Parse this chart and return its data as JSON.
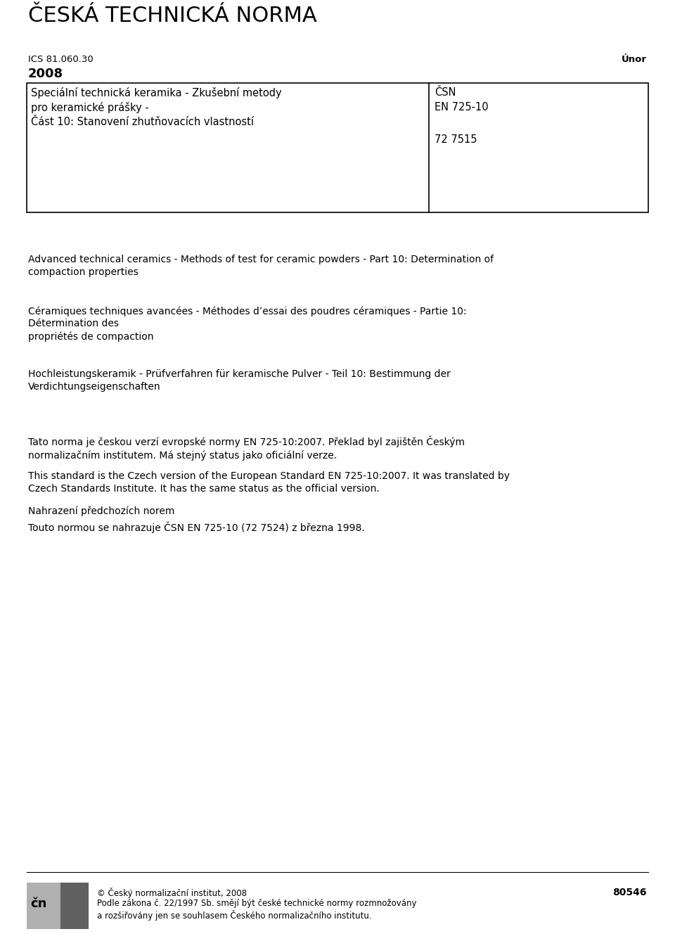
{
  "bg_color": "#ffffff",
  "title": "ČESKÁ TECHNICKÁ NORMA",
  "ics": "ICS 81.060.30",
  "month": "Únor",
  "year": "2008",
  "table_left_lines": [
    "Speciální technická keramika - Zkušební metody",
    "pro keramické prášky -",
    "Část 10: Stanovení zhutňovacích vlastností"
  ],
  "table_right_lines_top": [
    "ČSN",
    "EN 725-10"
  ],
  "table_right_code": "72 7515",
  "english_text": "Advanced technical ceramics - Methods of test for ceramic powders - Part 10: Determination of\ncompaction properties",
  "french_text": "Céramiques techniques avancées - Méthodes d’essai des poudres céramiques - Partie 10:\nDétermination des\npropriétés de compaction",
  "german_text": "Hochleistungskeramik - Prüfverfahren für keramische Pulver - Teil 10: Bestimmung der\nVerdichtungseigenschaften",
  "czech_text1": "Tato norma je českou verzí evropské normy EN 725-10:2007. Překlad byl zajištěn Českým\nnormalizačním institutem. Má stejný status jako oficiální verze.",
  "czech_text2": "This standard is the Czech version of the European Standard EN 725-10:2007. It was translated by\nCzech Standards Institute. It has the same status as the official version.",
  "czech_text3": "Nahrazení předchozích norem",
  "czech_text4": "Touto normou se nahrazuje ČSN EN 725-10 (72 7524) z března 1998.",
  "footer_line1": "© Český normalizační institut, 2008",
  "footer_line2": "Podle zákona č. 22/1997 Sb. smějí být české technické normy rozmnožovány",
  "footer_line3": "a rozšiřovány jen se souhlasem Českého normalizačního institutu.",
  "footer_number": "80546"
}
